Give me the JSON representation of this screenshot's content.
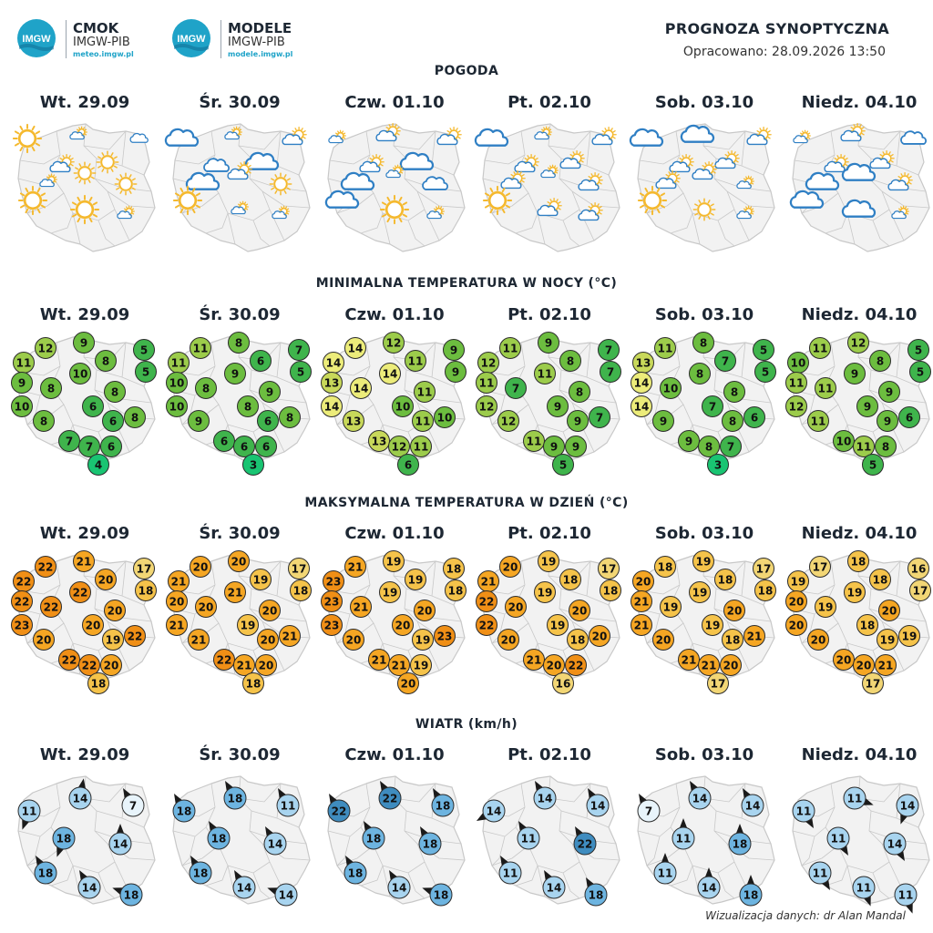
{
  "header": {
    "logos": [
      {
        "mark": "IMGW",
        "name": "CMOK",
        "org": "IMGW-PIB",
        "url": "meteo.imgw.pl"
      },
      {
        "mark": "IMGW",
        "name": "MODELE",
        "org": "IMGW-PIB",
        "url": "modele.imgw.pl"
      }
    ],
    "title": "PROGNOZA SYNOPTYCZNA",
    "prepared": "Opracowano: 28.09.2026 13:50"
  },
  "days": [
    "Wt. 29.09",
    "Śr. 30.09",
    "Czw. 01.10",
    "Pt. 02.10",
    "Sob. 03.10",
    "Niedz. 04.10"
  ],
  "colors": {
    "map_fill": "#f2f2f2",
    "map_border": "#c8c8c8",
    "sun": "#f5b92e",
    "cloud_stroke": "#2f7fc4",
    "temp_min_scale": [
      "#19c472",
      "#3fb44c",
      "#6cbd3f",
      "#9ccc4b",
      "#c8d85a",
      "#ecec7a"
    ],
    "temp_max_scale": [
      "#f2d675",
      "#f5c34a",
      "#f5a623",
      "#f08f16"
    ],
    "wind_scale": [
      "#e8f4fb",
      "#a8d4ef",
      "#6db4e0",
      "#3f8cbf"
    ]
  },
  "sections": {
    "weather": {
      "title": "POGODA",
      "days": [
        [
          {
            "icon": "sun",
            "size": "l"
          },
          {
            "icon": "sun-cloud",
            "size": "s"
          },
          {
            "icon": "cloud",
            "size": "s"
          },
          {
            "icon": "sun-cloud",
            "size": "m"
          },
          {
            "icon": "sun",
            "size": "m"
          },
          {
            "icon": "sun",
            "size": "m"
          },
          {
            "icon": "sun-cloud",
            "size": "s"
          },
          {
            "icon": "sun",
            "size": "m"
          },
          {
            "icon": "sun",
            "size": "l"
          },
          {
            "icon": "sun",
            "size": "l"
          },
          {
            "icon": "sun-cloud",
            "size": "s"
          }
        ],
        [
          {
            "icon": "cloud",
            "size": "l"
          },
          {
            "icon": "sun-cloud",
            "size": "s"
          },
          {
            "icon": "sun-cloud",
            "size": "m"
          },
          {
            "icon": "cloud",
            "size": "m"
          },
          {
            "icon": "cloud",
            "size": "l"
          },
          {
            "icon": "sun-cloud",
            "size": "m"
          },
          {
            "icon": "cloud",
            "size": "l"
          },
          {
            "icon": "sun",
            "size": "m"
          },
          {
            "icon": "sun",
            "size": "l"
          },
          {
            "icon": "sun-cloud",
            "size": "s"
          },
          {
            "icon": "sun-cloud",
            "size": "s"
          }
        ],
        [
          {
            "icon": "sun-cloud",
            "size": "s"
          },
          {
            "icon": "sun-cloud",
            "size": "m"
          },
          {
            "icon": "sun-cloud",
            "size": "m"
          },
          {
            "icon": "sun-cloud",
            "size": "m"
          },
          {
            "icon": "cloud",
            "size": "l"
          },
          {
            "icon": "sun-cloud",
            "size": "s"
          },
          {
            "icon": "cloud",
            "size": "l"
          },
          {
            "icon": "cloud",
            "size": "m"
          },
          {
            "icon": "cloud",
            "size": "l"
          },
          {
            "icon": "sun",
            "size": "l"
          },
          {
            "icon": "sun-cloud",
            "size": "s"
          }
        ],
        [
          {
            "icon": "cloud",
            "size": "l"
          },
          {
            "icon": "sun-cloud",
            "size": "s"
          },
          {
            "icon": "sun-cloud",
            "size": "m"
          },
          {
            "icon": "sun-cloud",
            "size": "m"
          },
          {
            "icon": "sun-cloud",
            "size": "m"
          },
          {
            "icon": "sun-cloud",
            "size": "s"
          },
          {
            "icon": "sun-cloud",
            "size": "m"
          },
          {
            "icon": "sun-cloud",
            "size": "m"
          },
          {
            "icon": "sun",
            "size": "l"
          },
          {
            "icon": "sun-cloud",
            "size": "m"
          },
          {
            "icon": "sun-cloud",
            "size": "m"
          }
        ],
        [
          {
            "icon": "cloud",
            "size": "l"
          },
          {
            "icon": "cloud",
            "size": "l"
          },
          {
            "icon": "sun-cloud",
            "size": "m"
          },
          {
            "icon": "sun-cloud",
            "size": "m"
          },
          {
            "icon": "sun-cloud",
            "size": "m"
          },
          {
            "icon": "sun-cloud",
            "size": "m"
          },
          {
            "icon": "sun-cloud",
            "size": "m"
          },
          {
            "icon": "sun-cloud",
            "size": "s"
          },
          {
            "icon": "sun",
            "size": "l"
          },
          {
            "icon": "sun",
            "size": "m"
          },
          {
            "icon": "sun-cloud",
            "size": "s"
          }
        ],
        [
          {
            "icon": "sun-cloud",
            "size": "s"
          },
          {
            "icon": "sun-cloud",
            "size": "m"
          },
          {
            "icon": "cloud",
            "size": "m"
          },
          {
            "icon": "sun-cloud",
            "size": "m"
          },
          {
            "icon": "sun-cloud",
            "size": "m"
          },
          {
            "icon": "cloud",
            "size": "l"
          },
          {
            "icon": "cloud",
            "size": "l"
          },
          {
            "icon": "sun-cloud",
            "size": "m"
          },
          {
            "icon": "cloud",
            "size": "l"
          },
          {
            "icon": "cloud",
            "size": "l"
          },
          {
            "icon": "sun-cloud",
            "size": "s"
          }
        ]
      ]
    },
    "temp_min": {
      "title": "MINIMALNA TEMPERATURA W NOCY (°C)",
      "days": [
        [
          12,
          9,
          11,
          8,
          5,
          5,
          9,
          8,
          10,
          8,
          10,
          6,
          8,
          6,
          8,
          7,
          7,
          6,
          4
        ],
        [
          11,
          8,
          11,
          6,
          7,
          5,
          10,
          8,
          9,
          9,
          10,
          8,
          9,
          6,
          8,
          6,
          6,
          6,
          3
        ],
        [
          14,
          12,
          14,
          11,
          9,
          9,
          13,
          14,
          14,
          11,
          14,
          10,
          13,
          11,
          10,
          13,
          12,
          11,
          6
        ],
        [
          11,
          9,
          12,
          8,
          7,
          7,
          11,
          7,
          11,
          8,
          12,
          9,
          12,
          9,
          7,
          11,
          9,
          9,
          5
        ],
        [
          11,
          8,
          13,
          7,
          5,
          5,
          14,
          10,
          8,
          8,
          14,
          7,
          9,
          8,
          6,
          9,
          8,
          7,
          3
        ],
        [
          11,
          12,
          10,
          8,
          5,
          5,
          11,
          11,
          9,
          9,
          12,
          9,
          11,
          9,
          6,
          10,
          11,
          8,
          5
        ]
      ]
    },
    "temp_max": {
      "title": "MAKSYMALNA TEMPERATURA W DZIEŃ (°C)",
      "days": [
        [
          22,
          21,
          22,
          20,
          17,
          18,
          22,
          22,
          22,
          20,
          23,
          20,
          20,
          19,
          22,
          22,
          22,
          20,
          18
        ],
        [
          20,
          20,
          21,
          19,
          17,
          18,
          20,
          20,
          21,
          20,
          21,
          19,
          21,
          20,
          21,
          22,
          21,
          20,
          18
        ],
        [
          21,
          19,
          23,
          19,
          18,
          18,
          23,
          21,
          19,
          20,
          23,
          20,
          20,
          19,
          23,
          21,
          21,
          19,
          20
        ],
        [
          20,
          19,
          21,
          18,
          17,
          18,
          22,
          20,
          19,
          20,
          22,
          19,
          20,
          18,
          20,
          21,
          20,
          22,
          16
        ],
        [
          18,
          19,
          20,
          18,
          17,
          18,
          21,
          19,
          19,
          20,
          21,
          19,
          20,
          18,
          21,
          21,
          21,
          20,
          17
        ],
        [
          17,
          18,
          19,
          18,
          16,
          17,
          20,
          19,
          19,
          20,
          20,
          18,
          20,
          19,
          19,
          20,
          20,
          21,
          17
        ]
      ]
    },
    "wind": {
      "title": "WIATR (km/h)",
      "days": [
        [
          {
            "v": 11,
            "dir": 200
          },
          {
            "v": 14,
            "dir": 10
          },
          {
            "v": 7,
            "dir": 330
          },
          {
            "v": 18,
            "dir": 200
          },
          {
            "v": 14,
            "dir": 0
          },
          {
            "v": 18,
            "dir": 330
          },
          {
            "v": 14,
            "dir": 330
          },
          {
            "v": 18,
            "dir": 290
          }
        ],
        [
          {
            "v": 18,
            "dir": 330
          },
          {
            "v": 18,
            "dir": 330
          },
          {
            "v": 11,
            "dir": 330
          },
          {
            "v": 18,
            "dir": 330
          },
          {
            "v": 14,
            "dir": 330
          },
          {
            "v": 18,
            "dir": 330
          },
          {
            "v": 14,
            "dir": 330
          },
          {
            "v": 14,
            "dir": 290
          }
        ],
        [
          {
            "v": 22,
            "dir": 330
          },
          {
            "v": 22,
            "dir": 330
          },
          {
            "v": 18,
            "dir": 330
          },
          {
            "v": 18,
            "dir": 330
          },
          {
            "v": 18,
            "dir": 330
          },
          {
            "v": 18,
            "dir": 330
          },
          {
            "v": 14,
            "dir": 330
          },
          {
            "v": 18,
            "dir": 290
          }
        ],
        [
          {
            "v": 14,
            "dir": 240
          },
          {
            "v": 14,
            "dir": 330
          },
          {
            "v": 14,
            "dir": 330
          },
          {
            "v": 11,
            "dir": 330
          },
          {
            "v": 22,
            "dir": 330
          },
          {
            "v": 11,
            "dir": 330
          },
          {
            "v": 14,
            "dir": 330
          },
          {
            "v": 18,
            "dir": 330
          }
        ],
        [
          {
            "v": 7,
            "dir": 330
          },
          {
            "v": 14,
            "dir": 330
          },
          {
            "v": 14,
            "dir": 330
          },
          {
            "v": 11,
            "dir": 0
          },
          {
            "v": 18,
            "dir": 0
          },
          {
            "v": 11,
            "dir": 0
          },
          {
            "v": 14,
            "dir": 0
          },
          {
            "v": 18,
            "dir": 0
          }
        ],
        [
          {
            "v": 11,
            "dir": 150
          },
          {
            "v": 11,
            "dir": 110
          },
          {
            "v": 14,
            "dir": 200
          },
          {
            "v": 11,
            "dir": 150
          },
          {
            "v": 14,
            "dir": 150
          },
          {
            "v": 11,
            "dir": 150
          },
          {
            "v": 11,
            "dir": 160
          },
          {
            "v": 11,
            "dir": 160
          }
        ]
      ]
    }
  },
  "footer": {
    "credit": "Wizualizacja danych: dr Alan Mandal"
  }
}
